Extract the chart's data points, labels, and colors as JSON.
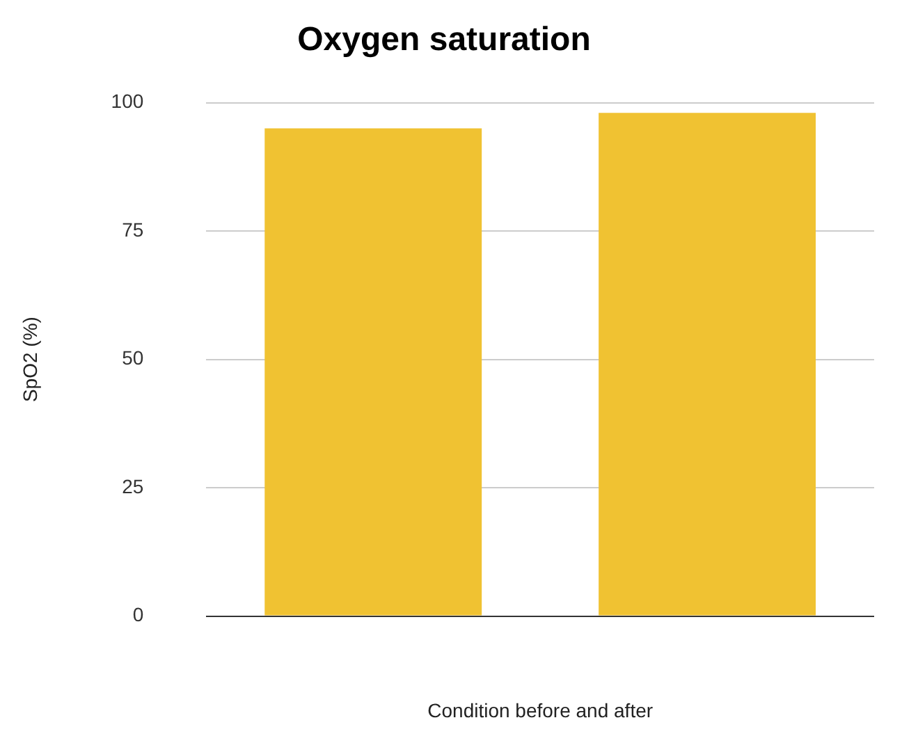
{
  "chart_data": {
    "type": "bar",
    "title": "Oxygen saturation",
    "xlabel": "Condition before and after",
    "ylabel": "SpO2 (%)",
    "categories": [
      null,
      null
    ],
    "values": [
      95,
      98
    ],
    "color": "#f0c232",
    "ylim": [
      0,
      100
    ],
    "yticks": [
      0,
      25,
      50,
      75,
      100
    ],
    "grid": "y",
    "legend": false
  }
}
